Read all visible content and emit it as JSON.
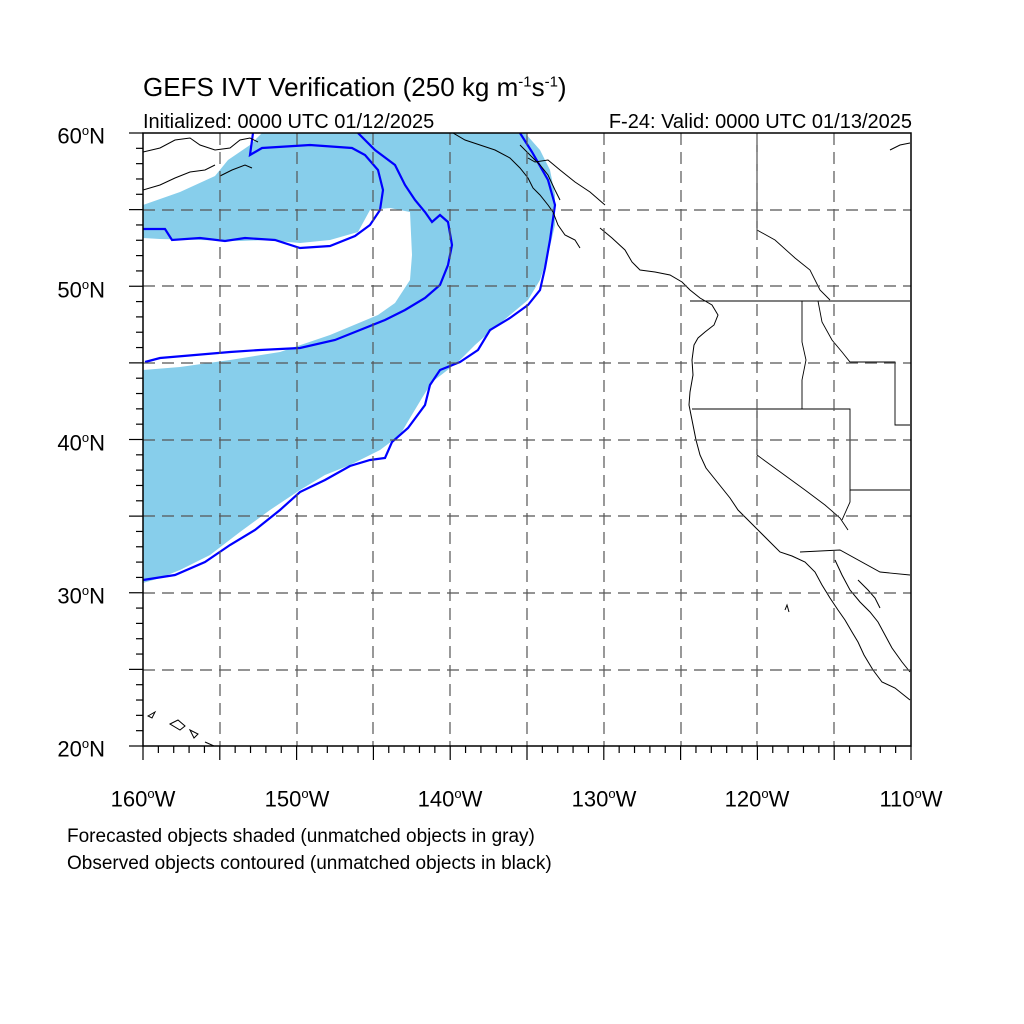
{
  "title": {
    "main": "GEFS IVT Verification (250 kg m",
    "sup1": "-1",
    "mid": "s",
    "sup2": "-1",
    "end": ")"
  },
  "initialized": "Initialized: 0000 UTC 01/12/2025",
  "valid": "F-24: Valid: 0000 UTC 01/13/2025",
  "lat_labels": [
    "60",
    "50",
    "40",
    "30",
    "20"
  ],
  "lat_suffix": "N",
  "lon_labels": [
    "160",
    "150",
    "140",
    "130",
    "120",
    "110"
  ],
  "lon_suffix": "W",
  "notes": [
    "Forecasted objects shaded (unmatched objects in gray)",
    "Observed objects contoured (unmatched objects in black)"
  ],
  "colors": {
    "forecast_fill": "#87ceeb",
    "observed_contour": "#0000ff",
    "coast": "#000000",
    "grid": "#555555"
  }
}
